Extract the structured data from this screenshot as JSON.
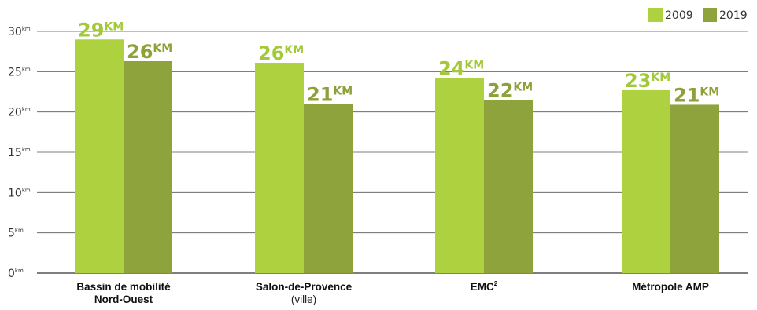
{
  "chart_data": {
    "type": "bar",
    "categories": [
      {
        "label": "Bassin de mobilité",
        "label2": "Nord-Ouest",
        "sublabel": ""
      },
      {
        "label": "Salon-de-Provence",
        "label2": "",
        "sublabel": "(ville)"
      },
      {
        "label": "EMC",
        "sup": "2",
        "label2": "",
        "sublabel": ""
      },
      {
        "label": "Métropole AMP",
        "label2": "",
        "sublabel": ""
      }
    ],
    "series": [
      {
        "name": "2009",
        "color": "#aed13f",
        "label_color": "#a3c93a",
        "values": [
          29,
          26.1,
          24.2,
          22.7
        ],
        "data_labels": [
          "29",
          "26",
          "24",
          "23"
        ]
      },
      {
        "name": "2019",
        "color": "#8fa33c",
        "label_color": "#8ca238",
        "values": [
          26.3,
          21,
          21.5,
          20.9
        ],
        "data_labels": [
          "26",
          "21",
          "22",
          "21"
        ]
      }
    ],
    "data_label_unit": "KM",
    "ylim": [
      0,
      30
    ],
    "yticks": [
      {
        "value": 0,
        "label": "0",
        "unit": "km"
      },
      {
        "value": 5,
        "label": "5",
        "unit": "km"
      },
      {
        "value": 10,
        "label": "10",
        "unit": "km"
      },
      {
        "value": 15,
        "label": "15",
        "unit": "km"
      },
      {
        "value": 20,
        "label": "20",
        "unit": "km"
      },
      {
        "value": 25,
        "label": "25",
        "unit": "km"
      },
      {
        "value": 30,
        "label": "30",
        "unit": "km"
      }
    ],
    "grid": true,
    "legend_position": "top-right",
    "title": "",
    "xlabel": "",
    "ylabel": ""
  }
}
